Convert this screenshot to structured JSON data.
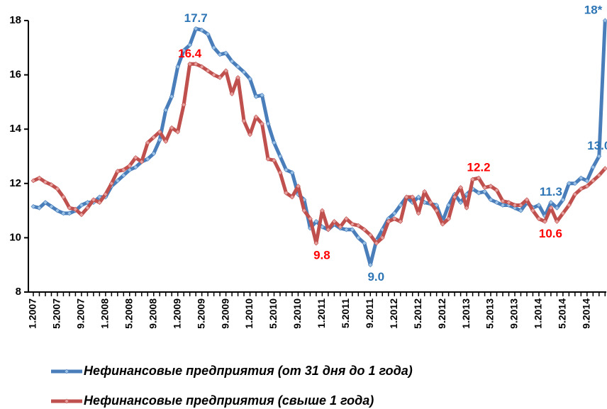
{
  "chart_data": {
    "type": "line",
    "categories": [
      "1.2007",
      null,
      null,
      null,
      "5.2007",
      null,
      null,
      null,
      "9.2007",
      null,
      null,
      null,
      "1.2008",
      null,
      null,
      null,
      "5.2008",
      null,
      null,
      null,
      "9.2008",
      null,
      null,
      null,
      "1.2009",
      null,
      null,
      null,
      "5.2009",
      null,
      null,
      null,
      "9.2009",
      null,
      null,
      null,
      "1.2010",
      null,
      null,
      null,
      "5.2010",
      null,
      null,
      null,
      "9.2010",
      null,
      null,
      null,
      "1.2011",
      null,
      null,
      null,
      "5.2011",
      null,
      null,
      null,
      "9.2011",
      null,
      null,
      null,
      "1.2012",
      null,
      null,
      null,
      "5.2012",
      null,
      null,
      null,
      "9.2012",
      null,
      null,
      null,
      "1.2013",
      null,
      null,
      null,
      "5.2013",
      null,
      null,
      null,
      "9.2013",
      null,
      null,
      null,
      "1.2014",
      null,
      null,
      null,
      "5.2014",
      null,
      null,
      null,
      "9.2014",
      null,
      null,
      null
    ],
    "series": [
      {
        "name": "Нефинансовые предприятия (от 31 дня до 1 года)",
        "color": "#4a7ebb",
        "marker_color": "#9dc3e6",
        "label_color": "#2e75b6",
        "values": [
          11.15,
          11.1,
          11.3,
          11.15,
          11.0,
          10.9,
          10.9,
          11.0,
          11.2,
          11.3,
          11.3,
          11.5,
          11.5,
          11.9,
          12.1,
          12.3,
          12.5,
          12.6,
          12.8,
          12.9,
          13.1,
          13.6,
          14.7,
          15.2,
          16.3,
          16.9,
          17.1,
          17.7,
          17.65,
          17.5,
          17.0,
          16.75,
          16.8,
          16.5,
          16.3,
          16.1,
          15.85,
          15.2,
          15.25,
          14.2,
          13.5,
          13.0,
          12.5,
          12.4,
          11.6,
          11.4,
          10.35,
          10.6,
          10.4,
          10.3,
          10.5,
          10.35,
          10.3,
          10.3,
          10.0,
          9.8,
          9.0,
          9.9,
          10.3,
          10.7,
          10.9,
          11.2,
          11.5,
          11.3,
          11.5,
          11.3,
          11.25,
          11.2,
          10.6,
          11.2,
          11.6,
          11.3,
          11.6,
          11.8,
          11.65,
          11.7,
          11.4,
          11.3,
          11.2,
          11.2,
          11.1,
          11.0,
          11.3,
          11.1,
          11.2,
          10.8,
          11.3,
          11.1,
          11.4,
          12.0,
          12.0,
          12.2,
          12.1,
          12.6,
          13.0,
          18
        ],
        "value_labels": [
          null,
          null,
          null,
          null,
          null,
          null,
          null,
          null,
          null,
          null,
          null,
          null,
          null,
          null,
          null,
          null,
          null,
          null,
          null,
          null,
          null,
          null,
          null,
          null,
          null,
          null,
          null,
          "17.7",
          null,
          null,
          null,
          null,
          null,
          null,
          null,
          null,
          null,
          null,
          null,
          null,
          null,
          null,
          null,
          null,
          null,
          null,
          null,
          null,
          null,
          null,
          null,
          null,
          null,
          null,
          null,
          null,
          "9.0",
          null,
          null,
          null,
          null,
          null,
          null,
          null,
          null,
          null,
          null,
          null,
          null,
          null,
          null,
          null,
          null,
          null,
          null,
          null,
          null,
          null,
          null,
          null,
          null,
          null,
          null,
          null,
          null,
          null,
          "11.3",
          null,
          null,
          null,
          null,
          null,
          null,
          null,
          "13.0",
          "18*"
        ]
      },
      {
        "name": "Нефинансовые предприятия (свыше 1 года)",
        "color": "#c0504d",
        "marker_color": "#e6a09e",
        "label_color": "#ff0000",
        "values": [
          12.1,
          12.2,
          12.05,
          11.95,
          11.8,
          11.5,
          11.1,
          11.05,
          10.85,
          11.1,
          11.4,
          11.3,
          11.6,
          12.0,
          12.45,
          12.5,
          12.65,
          12.95,
          12.8,
          13.5,
          13.7,
          13.9,
          13.55,
          14.05,
          13.9,
          14.9,
          16.4,
          16.4,
          16.3,
          16.15,
          16.0,
          15.9,
          16.15,
          15.3,
          15.9,
          14.3,
          13.8,
          14.45,
          14.2,
          12.9,
          12.85,
          12.4,
          11.65,
          11.5,
          11.9,
          11.0,
          10.7,
          9.8,
          11.0,
          10.3,
          10.6,
          10.4,
          10.7,
          10.5,
          10.45,
          10.3,
          10.1,
          9.8,
          10.0,
          10.6,
          10.7,
          10.6,
          11.5,
          11.5,
          10.9,
          11.7,
          11.3,
          11.0,
          10.5,
          10.7,
          11.5,
          11.85,
          11.1,
          12.15,
          12.2,
          11.85,
          11.9,
          11.75,
          11.35,
          11.3,
          11.2,
          11.2,
          11.4,
          11.0,
          10.7,
          10.6,
          11.1,
          10.6,
          10.9,
          11.2,
          11.6,
          11.8,
          11.9,
          12.1,
          12.3,
          12.55
        ],
        "value_labels": [
          null,
          null,
          null,
          null,
          null,
          null,
          null,
          null,
          null,
          null,
          null,
          null,
          null,
          null,
          null,
          null,
          null,
          null,
          null,
          null,
          null,
          null,
          null,
          null,
          null,
          null,
          "16.4",
          null,
          null,
          null,
          null,
          null,
          null,
          null,
          null,
          null,
          null,
          null,
          null,
          null,
          null,
          null,
          null,
          null,
          null,
          null,
          null,
          "9.8",
          null,
          null,
          null,
          null,
          null,
          null,
          null,
          null,
          null,
          null,
          null,
          null,
          null,
          null,
          null,
          null,
          null,
          null,
          null,
          null,
          null,
          null,
          null,
          null,
          null,
          null,
          "12.2",
          null,
          null,
          null,
          null,
          null,
          null,
          null,
          null,
          null,
          null,
          "10.6",
          null,
          null,
          null,
          null,
          null,
          null,
          null,
          null,
          null,
          null
        ]
      }
    ],
    "ylim": [
      8,
      18
    ],
    "yticks": [
      8,
      10,
      12,
      14,
      16,
      18
    ],
    "grid": false,
    "legend": "bottom"
  }
}
